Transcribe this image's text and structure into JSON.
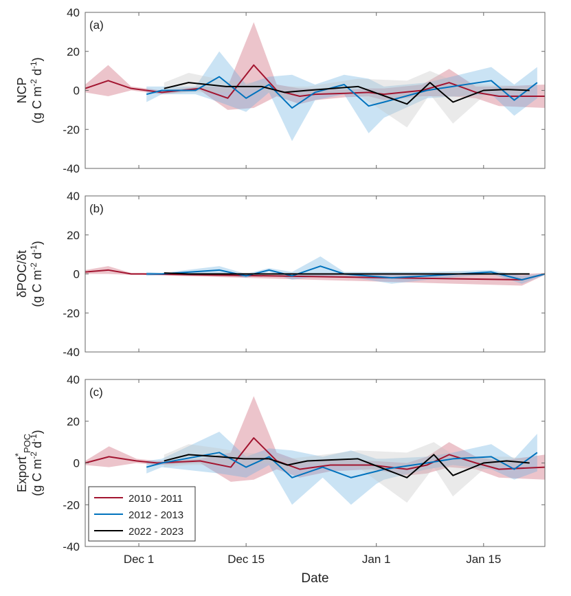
{
  "chart_data": [
    {
      "type": "line",
      "panel_label": "(a)",
      "ylabel": {
        "line1": "NCP",
        "line2_pre": "(g C m",
        "sup1": "-2",
        "mid": " d",
        "sup2": "-1",
        "post": ")"
      },
      "ylim": [
        -40,
        40
      ],
      "yticks": [
        "40",
        "20",
        "0",
        "-20",
        "-40"
      ],
      "x_unit": "days since Dec 1",
      "series": [
        {
          "name": "2010 - 2011",
          "x": [
            -7,
            -4,
            -1,
            3,
            8,
            11.6,
            15,
            18,
            21,
            23,
            27,
            30,
            32,
            37,
            40.5,
            44,
            47,
            53
          ],
          "y": [
            1,
            5,
            1,
            -1,
            1,
            -4,
            13,
            0,
            -3,
            -2,
            -1.5,
            -1,
            -2,
            0,
            4,
            -1,
            -3,
            -3
          ],
          "err": [
            2,
            8,
            1,
            1,
            1,
            6,
            22,
            3,
            4,
            3,
            2,
            2,
            3,
            3,
            7,
            3,
            5,
            6
          ]
        },
        {
          "name": "2012 - 2013",
          "x": [
            1,
            3,
            7.4,
            10.5,
            14,
            17,
            20,
            23,
            26.8,
            30,
            32,
            37.6,
            46,
            49,
            52
          ],
          "y": [
            -2,
            0,
            0,
            7,
            -4,
            3,
            -9,
            -1,
            3,
            -8,
            -6,
            0,
            5,
            -5,
            4
          ],
          "err": [
            4,
            2,
            2,
            13,
            7,
            4,
            17,
            4,
            5,
            14,
            8,
            4,
            7,
            8,
            8
          ]
        },
        {
          "name": "2022 - 2023",
          "x": [
            3.3,
            6.5,
            11.4,
            14,
            16,
            19,
            22,
            28.6,
            35,
            38,
            41,
            45,
            48,
            51
          ],
          "y": [
            1,
            4,
            2,
            2,
            2,
            -1,
            0,
            2,
            -7,
            4,
            -6,
            0,
            0.5,
            0
          ],
          "err": [
            3,
            5,
            3,
            2,
            2,
            3,
            2,
            4,
            12,
            6,
            11,
            3,
            2,
            2
          ]
        }
      ]
    },
    {
      "type": "line",
      "panel_label": "(b)",
      "ylabel": {
        "line1": "δPOC/δt",
        "line2_pre": "(g C m",
        "sup1": "-2",
        "mid": " d",
        "sup2": "-1",
        "post": ")"
      },
      "ylim": [
        -40,
        40
      ],
      "yticks": [
        "40",
        "20",
        "0",
        "-20",
        "-40"
      ],
      "x_unit": "days since Dec 1",
      "series": [
        {
          "name": "2010 - 2011",
          "x": [
            -7,
            -4,
            -1,
            0.5,
            50,
            53
          ],
          "y": [
            1,
            2,
            0,
            0,
            -3,
            0
          ],
          "err": [
            1,
            2,
            0.5,
            0.5,
            3,
            0.5
          ]
        },
        {
          "name": "2012 - 2013",
          "x": [
            1,
            3,
            10.5,
            14,
            17,
            20,
            23.7,
            26.8,
            33,
            37.6,
            46,
            50,
            53
          ],
          "y": [
            0,
            0,
            2,
            -1,
            2,
            -1,
            4,
            0,
            -2,
            -1,
            1,
            -3,
            0
          ],
          "err": [
            1,
            0.5,
            2,
            1,
            1,
            2,
            5,
            1,
            3,
            2,
            1,
            2,
            0.5
          ]
        },
        {
          "name": "2022 - 2023",
          "x": [
            3.3,
            6.5,
            11.4,
            16,
            22,
            28.6,
            35,
            41,
            45,
            51
          ],
          "y": [
            0.5,
            0,
            0,
            0,
            0,
            0,
            0,
            0,
            0,
            0
          ],
          "err": [
            0.5,
            0.5,
            0.5,
            0.5,
            0.5,
            0.5,
            0.5,
            0.5,
            0.5,
            0.5
          ]
        }
      ]
    },
    {
      "type": "line",
      "panel_label": "(c)",
      "ylabel": {
        "line1_pre": "Export",
        "line1_sup": "*",
        "line1_sub": "POC",
        "line2_pre": "(g C m",
        "sup1": "-2",
        "mid": " d",
        "sup2": "-1",
        "post": ")"
      },
      "ylim": [
        -40,
        40
      ],
      "yticks": [
        "40",
        "20",
        "0",
        "-20",
        "-40"
      ],
      "xticks": [
        "Dec 1",
        "Dec 15",
        "Jan 1",
        "Jan 15"
      ],
      "xtick_days": [
        0,
        14,
        31,
        45
      ],
      "xlim_days": [
        -7,
        53
      ],
      "xlabel": "Date",
      "legend_position": "bottom-left",
      "series": [
        {
          "name": "2010 - 2011",
          "x": [
            -7,
            -3.9,
            -0.3,
            2.4,
            8,
            12,
            15,
            18,
            21,
            25,
            30.4,
            35,
            37.6,
            40.5,
            44,
            47,
            53
          ],
          "y": [
            0,
            3,
            1,
            0,
            1,
            -2,
            12,
            1,
            -3,
            -1,
            -1,
            -3,
            -1,
            4,
            0,
            -3,
            -2
          ],
          "err": [
            1,
            5,
            1,
            1,
            1,
            7,
            20,
            4,
            4,
            3,
            2,
            3,
            4,
            6,
            3,
            4,
            6
          ]
        },
        {
          "name": "2012 - 2013",
          "x": [
            1,
            3,
            10.5,
            14,
            17,
            20,
            24,
            27.7,
            31,
            32,
            37.6,
            41,
            46,
            49,
            52
          ],
          "y": [
            -2,
            0,
            5,
            -2,
            3,
            -7,
            -2,
            -7,
            -4,
            -3,
            0,
            2,
            3,
            -3,
            5
          ],
          "err": [
            3,
            2,
            10,
            5,
            4,
            13,
            5,
            13,
            6,
            5,
            3,
            3,
            6,
            5,
            9
          ]
        },
        {
          "name": "2022 - 2023",
          "x": [
            3.3,
            6.5,
            10.5,
            13.7,
            17,
            19.4,
            22,
            28.6,
            35,
            38.5,
            41,
            45,
            48,
            51
          ],
          "y": [
            1,
            4,
            3,
            2,
            2,
            -1,
            1,
            2,
            -7,
            4,
            -6,
            0,
            1,
            0
          ],
          "err": [
            3,
            5,
            4,
            3,
            2,
            3,
            2,
            4,
            12,
            6,
            10,
            3,
            2,
            2
          ]
        }
      ]
    }
  ],
  "colors": {
    "2010 - 2011": "#a2142f",
    "2012 - 2013": "#0072bd",
    "2022 - 2023": "#000000",
    "band_2010 - 2011": "#c9566b",
    "band_2012 - 2013": "#66aee0",
    "band_2022 - 2023": "#c4c4c4"
  }
}
